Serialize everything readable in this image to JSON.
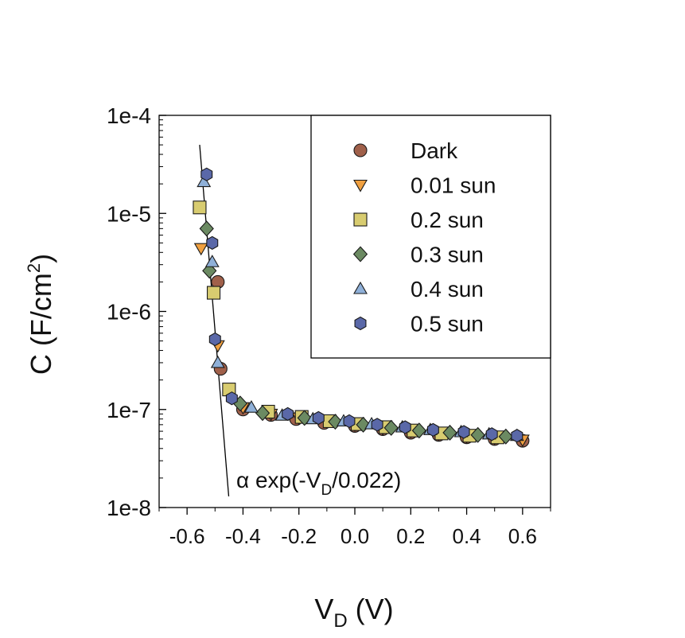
{
  "chart_data": {
    "type": "scatter",
    "xlabel": "V",
    "xlabel_sub": "D",
    "xlabel_unit": " (V)",
    "ylabel": "C (F/cm",
    "ylabel_sup": "2",
    "ylabel_end": ")",
    "xlim": [
      -0.7,
      0.7
    ],
    "ylim": [
      1e-08,
      0.0001
    ],
    "yscale": "log",
    "grid": false,
    "legend_position": "top-right",
    "x_ticks": [
      -0.6,
      -0.4,
      -0.2,
      0.0,
      0.2,
      0.4,
      0.6
    ],
    "x_tick_labels": [
      "-0.6",
      "-0.4",
      "-0.2",
      "0.0",
      "0.2",
      "0.4",
      "0.6"
    ],
    "y_ticks": [
      1e-08,
      1e-07,
      1e-06,
      1e-05,
      0.0001
    ],
    "y_tick_labels": [
      "1e-8",
      "1e-7",
      "1e-6",
      "1e-5",
      "1e-4"
    ],
    "fit_line": {
      "label_prefix": "α exp(-V",
      "label_sub": "D",
      "label_suffix": "/0.022)",
      "x": [
        -0.555,
        -0.451
      ],
      "y": [
        5e-05,
        1.3e-08
      ]
    },
    "series": [
      {
        "name": "Dark",
        "marker": "circle",
        "color": "#a0604a",
        "points": [
          [
            -0.49,
            2e-06
          ],
          [
            -0.48,
            2.6e-07
          ],
          [
            -0.4,
            1e-07
          ],
          [
            -0.3,
            8.8e-08
          ],
          [
            -0.21,
            8e-08
          ],
          [
            -0.11,
            7.3e-08
          ],
          [
            0.0,
            6.8e-08
          ],
          [
            0.1,
            6.3e-08
          ],
          [
            0.2,
            5.8e-08
          ],
          [
            0.3,
            5.5e-08
          ],
          [
            0.4,
            5.2e-08
          ],
          [
            0.5,
            5e-08
          ],
          [
            0.6,
            4.8e-08
          ]
        ]
      },
      {
        "name": "0.01 sun",
        "marker": "triangle-down",
        "color": "#f0a040",
        "points": [
          [
            -0.55,
            4.4e-06
          ],
          [
            -0.49,
            4.5e-07
          ],
          [
            -0.4,
            1.05e-07
          ],
          [
            -0.3,
            9e-08
          ],
          [
            -0.2,
            8.2e-08
          ],
          [
            -0.1,
            7.5e-08
          ],
          [
            0.0,
            7e-08
          ],
          [
            0.1,
            6.4e-08
          ],
          [
            0.2,
            6e-08
          ],
          [
            0.3,
            5.6e-08
          ],
          [
            0.4,
            5.3e-08
          ],
          [
            0.5,
            5.1e-08
          ],
          [
            0.6,
            4.9e-08
          ]
        ]
      },
      {
        "name": "0.2 sun",
        "marker": "square",
        "color": "#d8cc70",
        "points": [
          [
            -0.555,
            1.15e-05
          ],
          [
            -0.505,
            1.55e-06
          ],
          [
            -0.45,
            1.6e-07
          ],
          [
            -0.31,
            9.5e-08
          ],
          [
            -0.19,
            8.4e-08
          ],
          [
            -0.09,
            7.6e-08
          ],
          [
            0.01,
            7.1e-08
          ],
          [
            0.11,
            6.6e-08
          ],
          [
            0.21,
            6.1e-08
          ],
          [
            0.31,
            5.7e-08
          ],
          [
            0.41,
            5.4e-08
          ],
          [
            0.51,
            5.2e-08
          ]
        ]
      },
      {
        "name": "0.3 sun",
        "marker": "diamond",
        "color": "#6b8a62",
        "points": [
          [
            -0.53,
            7e-06
          ],
          [
            -0.52,
            2.6e-06
          ],
          [
            -0.41,
            1.15e-07
          ],
          [
            -0.33,
            9.2e-08
          ],
          [
            -0.18,
            8.2e-08
          ],
          [
            -0.07,
            7.5e-08
          ],
          [
            0.03,
            7e-08
          ],
          [
            0.13,
            6.5e-08
          ],
          [
            0.23,
            6.1e-08
          ],
          [
            0.34,
            5.8e-08
          ],
          [
            0.44,
            5.5e-08
          ],
          [
            0.54,
            5.3e-08
          ]
        ]
      },
      {
        "name": "0.4 sun",
        "marker": "triangle-up",
        "color": "#8fb0d8",
        "points": [
          [
            -0.54,
            2.1e-05
          ],
          [
            -0.51,
            3.2e-06
          ],
          [
            -0.49,
            3e-07
          ],
          [
            -0.37,
            1.05e-07
          ],
          [
            -0.26,
            8.7e-08
          ],
          [
            -0.15,
            8e-08
          ],
          [
            -0.04,
            7.6e-08
          ],
          [
            0.06,
            7.1e-08
          ],
          [
            0.17,
            6.6e-08
          ],
          [
            0.27,
            6.2e-08
          ],
          [
            0.38,
            5.9e-08
          ],
          [
            0.48,
            5.6e-08
          ],
          [
            0.58,
            5.4e-08
          ]
        ]
      },
      {
        "name": "0.5 sun",
        "marker": "hexagon",
        "color": "#5a68a8",
        "points": [
          [
            -0.53,
            2.5e-05
          ],
          [
            -0.51,
            5e-06
          ],
          [
            -0.5,
            5.2e-07
          ],
          [
            -0.44,
            1.3e-07
          ],
          [
            -0.24,
            9e-08
          ],
          [
            -0.13,
            8.2e-08
          ],
          [
            -0.02,
            7.6e-08
          ],
          [
            0.08,
            7e-08
          ],
          [
            0.18,
            6.6e-08
          ],
          [
            0.28,
            6.2e-08
          ],
          [
            0.39,
            5.9e-08
          ],
          [
            0.49,
            5.6e-08
          ],
          [
            0.58,
            5.4e-08
          ]
        ]
      }
    ]
  }
}
